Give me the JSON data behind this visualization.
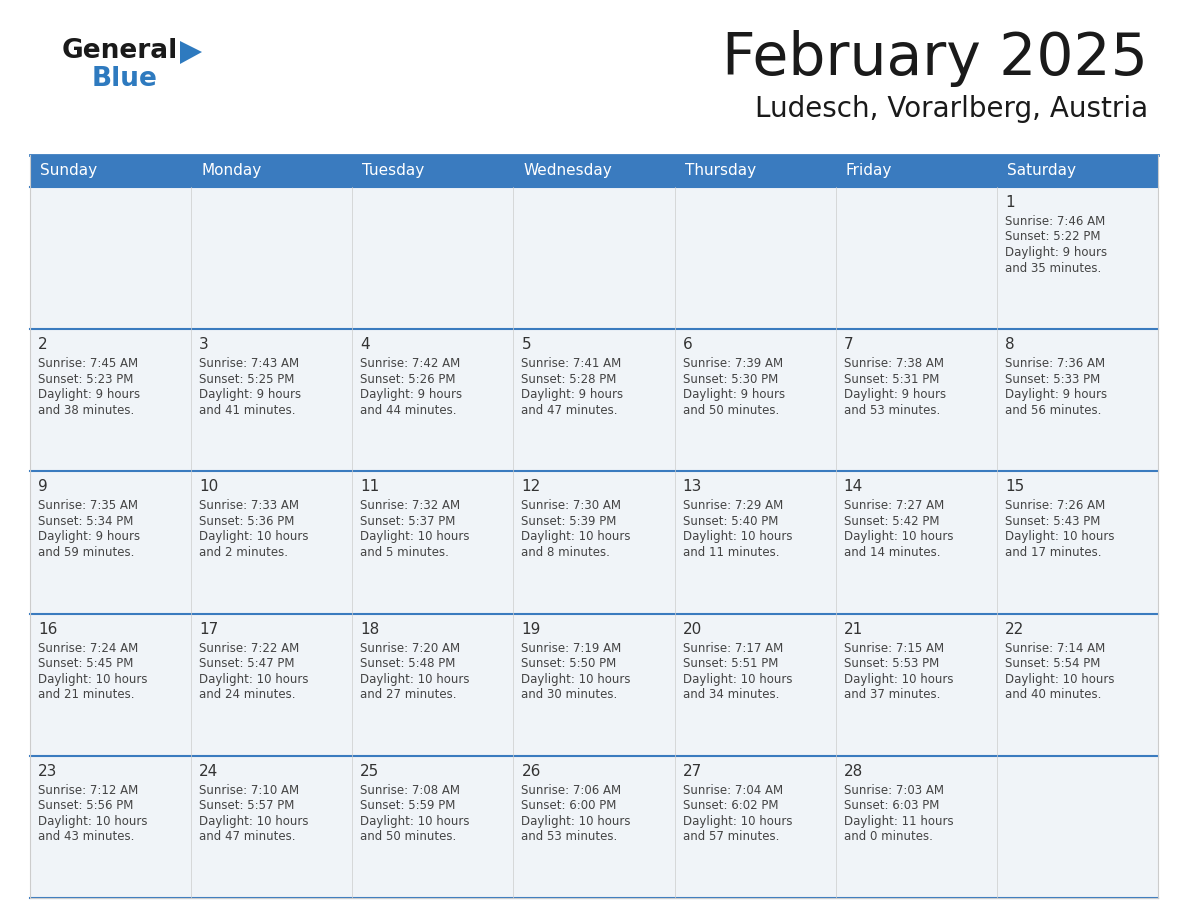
{
  "title": "February 2025",
  "subtitle": "Ludesch, Vorarlberg, Austria",
  "days_of_week": [
    "Sunday",
    "Monday",
    "Tuesday",
    "Wednesday",
    "Thursday",
    "Friday",
    "Saturday"
  ],
  "header_bg_color": "#3a7bbf",
  "header_text_color": "#ffffff",
  "cell_bg_color": "#f0f4f8",
  "cell_border_top_color": "#3a7bbf",
  "day_number_color": "#333333",
  "text_color": "#444444",
  "calendar": [
    [
      null,
      null,
      null,
      null,
      null,
      null,
      {
        "day": 1,
        "sunrise": "7:46 AM",
        "sunset": "5:22 PM",
        "daylight": "9 hours and 35 minutes"
      }
    ],
    [
      {
        "day": 2,
        "sunrise": "7:45 AM",
        "sunset": "5:23 PM",
        "daylight": "9 hours and 38 minutes"
      },
      {
        "day": 3,
        "sunrise": "7:43 AM",
        "sunset": "5:25 PM",
        "daylight": "9 hours and 41 minutes"
      },
      {
        "day": 4,
        "sunrise": "7:42 AM",
        "sunset": "5:26 PM",
        "daylight": "9 hours and 44 minutes"
      },
      {
        "day": 5,
        "sunrise": "7:41 AM",
        "sunset": "5:28 PM",
        "daylight": "9 hours and 47 minutes"
      },
      {
        "day": 6,
        "sunrise": "7:39 AM",
        "sunset": "5:30 PM",
        "daylight": "9 hours and 50 minutes"
      },
      {
        "day": 7,
        "sunrise": "7:38 AM",
        "sunset": "5:31 PM",
        "daylight": "9 hours and 53 minutes"
      },
      {
        "day": 8,
        "sunrise": "7:36 AM",
        "sunset": "5:33 PM",
        "daylight": "9 hours and 56 minutes"
      }
    ],
    [
      {
        "day": 9,
        "sunrise": "7:35 AM",
        "sunset": "5:34 PM",
        "daylight": "9 hours and 59 minutes"
      },
      {
        "day": 10,
        "sunrise": "7:33 AM",
        "sunset": "5:36 PM",
        "daylight": "10 hours and 2 minutes"
      },
      {
        "day": 11,
        "sunrise": "7:32 AM",
        "sunset": "5:37 PM",
        "daylight": "10 hours and 5 minutes"
      },
      {
        "day": 12,
        "sunrise": "7:30 AM",
        "sunset": "5:39 PM",
        "daylight": "10 hours and 8 minutes"
      },
      {
        "day": 13,
        "sunrise": "7:29 AM",
        "sunset": "5:40 PM",
        "daylight": "10 hours and 11 minutes"
      },
      {
        "day": 14,
        "sunrise": "7:27 AM",
        "sunset": "5:42 PM",
        "daylight": "10 hours and 14 minutes"
      },
      {
        "day": 15,
        "sunrise": "7:26 AM",
        "sunset": "5:43 PM",
        "daylight": "10 hours and 17 minutes"
      }
    ],
    [
      {
        "day": 16,
        "sunrise": "7:24 AM",
        "sunset": "5:45 PM",
        "daylight": "10 hours and 21 minutes"
      },
      {
        "day": 17,
        "sunrise": "7:22 AM",
        "sunset": "5:47 PM",
        "daylight": "10 hours and 24 minutes"
      },
      {
        "day": 18,
        "sunrise": "7:20 AM",
        "sunset": "5:48 PM",
        "daylight": "10 hours and 27 minutes"
      },
      {
        "day": 19,
        "sunrise": "7:19 AM",
        "sunset": "5:50 PM",
        "daylight": "10 hours and 30 minutes"
      },
      {
        "day": 20,
        "sunrise": "7:17 AM",
        "sunset": "5:51 PM",
        "daylight": "10 hours and 34 minutes"
      },
      {
        "day": 21,
        "sunrise": "7:15 AM",
        "sunset": "5:53 PM",
        "daylight": "10 hours and 37 minutes"
      },
      {
        "day": 22,
        "sunrise": "7:14 AM",
        "sunset": "5:54 PM",
        "daylight": "10 hours and 40 minutes"
      }
    ],
    [
      {
        "day": 23,
        "sunrise": "7:12 AM",
        "sunset": "5:56 PM",
        "daylight": "10 hours and 43 minutes"
      },
      {
        "day": 24,
        "sunrise": "7:10 AM",
        "sunset": "5:57 PM",
        "daylight": "10 hours and 47 minutes"
      },
      {
        "day": 25,
        "sunrise": "7:08 AM",
        "sunset": "5:59 PM",
        "daylight": "10 hours and 50 minutes"
      },
      {
        "day": 26,
        "sunrise": "7:06 AM",
        "sunset": "6:00 PM",
        "daylight": "10 hours and 53 minutes"
      },
      {
        "day": 27,
        "sunrise": "7:04 AM",
        "sunset": "6:02 PM",
        "daylight": "10 hours and 57 minutes"
      },
      {
        "day": 28,
        "sunrise": "7:03 AM",
        "sunset": "6:03 PM",
        "daylight": "11 hours and 0 minutes"
      },
      null
    ]
  ],
  "logo_text1": "General",
  "logo_text2": "Blue",
  "logo_color1": "#1a1a1a",
  "logo_color2": "#2e7abf",
  "logo_triangle_color": "#2e7abf",
  "fig_width": 11.88,
  "fig_height": 9.18,
  "dpi": 100
}
